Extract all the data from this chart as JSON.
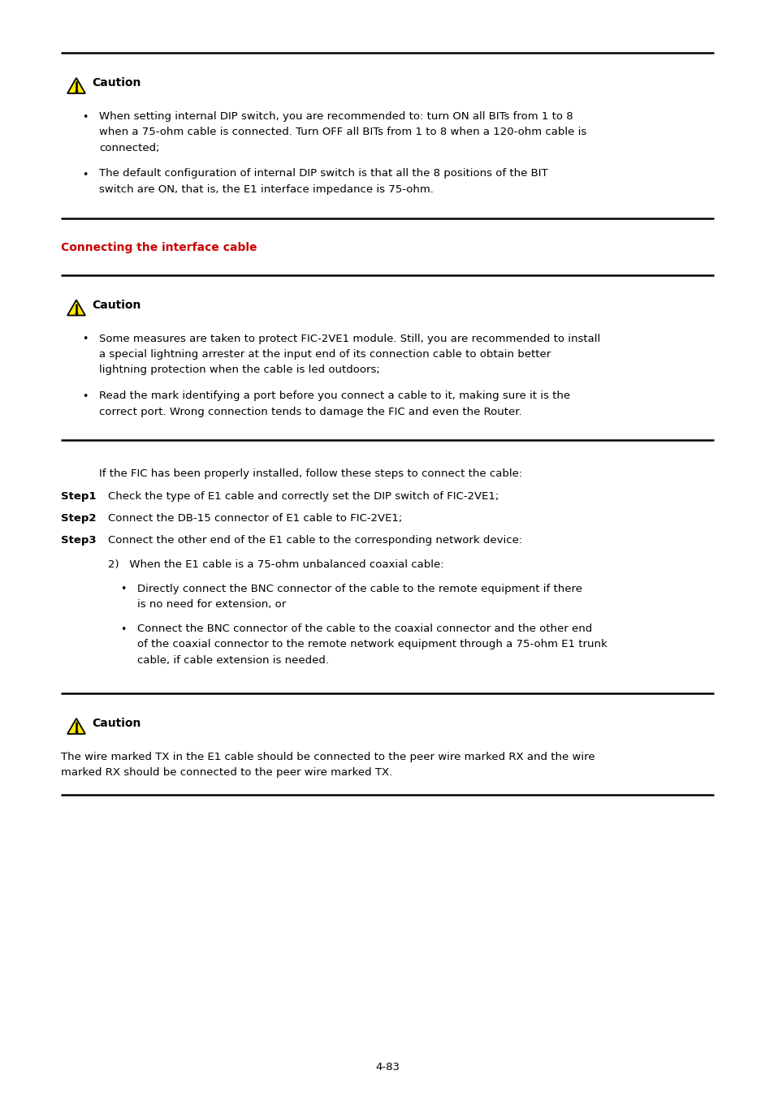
{
  "bg_color": "#ffffff",
  "text_color": "#000000",
  "red_heading_color": "#cc0000",
  "page_number": "4-83",
  "caution_label": "Caution",
  "section_heading": "Connecting the interface cable",
  "block1_bullets": [
    "When setting internal DIP switch, you are recommended to: turn ON all BITs from 1 to 8 when a 75-ohm cable is connected. Turn OFF all BITs from 1 to 8 when a 120-ohm cable is connected;",
    "The default configuration of internal DIP switch is that all the 8 positions of the BIT switch are ON, that is, the E1 interface impedance is 75-ohm."
  ],
  "block2_bullets": [
    "Some measures are taken to protect FIC-2VE1 module. Still, you are recommended to install a special lightning arrester at the input end of its connection cable to obtain better lightning protection when the cable is led outdoors;",
    "Read the mark identifying a port before you connect a cable to it, making sure it is the correct port. Wrong connection tends to damage the FIC and even the Router."
  ],
  "intro_text": "If the FIC has been properly installed, follow these steps to connect the cable:",
  "steps": [
    {
      "label": "Step1",
      "text": "Check the type of E1 cable and correctly set the DIP switch of FIC-2VE1;"
    },
    {
      "label": "Step2",
      "text": "Connect the DB-15 connector of E1 cable to FIC-2VE1;"
    },
    {
      "label": "Step3",
      "text": "Connect the other end of the E1 cable to the corresponding network device:"
    }
  ],
  "substep_num": "2)   When the E1 cable is a 75-ohm unbalanced coaxial cable:",
  "substep_bullets": [
    "Directly connect the BNC connector of the cable to the remote equipment if there is no need for extension, or",
    "Connect the BNC connector of the cable to the coaxial connector and the other end of the coaxial connector to the remote network equipment through a 75-ohm E1 trunk cable, if cable extension is needed."
  ],
  "block3_text": "The wire marked TX in the E1 cable should be connected to the peer wire marked RX and the wire marked RX should be connected to the peer wire marked TX."
}
